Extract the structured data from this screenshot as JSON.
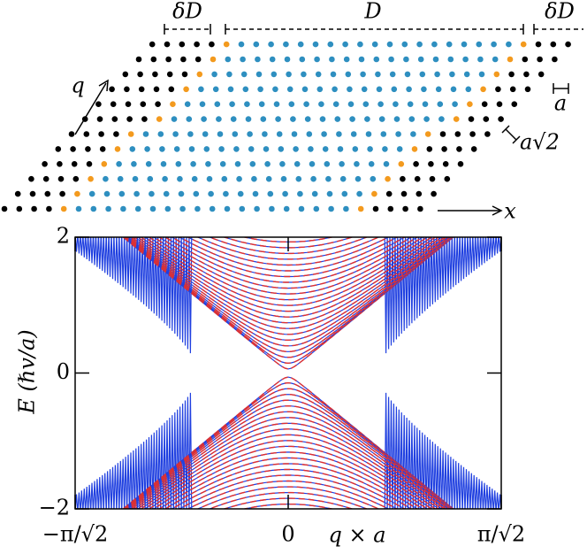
{
  "lattice": {
    "delta_left": "δD",
    "width": "D",
    "delta_right": "δD",
    "q": "q",
    "a": "a",
    "a_sqrt2": "a√2",
    "x": "x"
  },
  "chart_data": {
    "type": "line",
    "ylabel": "E (ℏv/a)",
    "xlabel": "q × a",
    "xlim": [
      -2.2214,
      2.2214
    ],
    "ylim": [
      -2,
      2
    ],
    "xticks": [
      {
        "value": -2.2214,
        "label": "−π/√2"
      },
      0,
      {
        "value": 2.2214,
        "label": "π/√2"
      }
    ],
    "yticks": [
      {
        "value": -2,
        "label": "−2"
      },
      0,
      2
    ],
    "colors": [
      "#2040e0",
      "#e03030"
    ]
  }
}
